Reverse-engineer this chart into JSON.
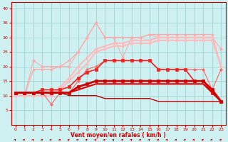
{
  "x": [
    0,
    1,
    2,
    3,
    4,
    5,
    6,
    7,
    8,
    9,
    10,
    11,
    12,
    13,
    14,
    15,
    16,
    17,
    18,
    19,
    20,
    21,
    22,
    23
  ],
  "series": [
    {
      "color": "#ffaaaa",
      "linewidth": 0.8,
      "marker": "D",
      "markersize": 2.0,
      "y": [
        10,
        10,
        22,
        20,
        20,
        20,
        20,
        25,
        30,
        35,
        30,
        30,
        23,
        30,
        30,
        31,
        30,
        30,
        30,
        30,
        30,
        30,
        30,
        26
      ]
    },
    {
      "color": "#ffaaaa",
      "linewidth": 1.0,
      "marker": "o",
      "markersize": 2.0,
      "y": [
        10,
        10,
        19,
        19,
        19,
        20,
        22,
        25,
        30,
        35,
        30,
        30,
        30,
        30,
        30,
        31,
        31,
        31,
        31,
        31,
        31,
        31,
        31,
        20
      ]
    },
    {
      "color": "#ffbbbb",
      "linewidth": 1.5,
      "marker": "D",
      "markersize": 2.0,
      "y": [
        10,
        10,
        10,
        10,
        10,
        13,
        16,
        20,
        23,
        26,
        27,
        28,
        28,
        29,
        29,
        29,
        30,
        30,
        30,
        30,
        30,
        30,
        30,
        20
      ]
    },
    {
      "color": "#ffbbbb",
      "linewidth": 1.5,
      "marker": "D",
      "markersize": 2.0,
      "y": [
        10,
        10,
        10,
        10,
        10,
        12,
        15,
        18,
        21,
        25,
        26,
        27,
        27,
        28,
        28,
        28,
        29,
        29,
        29,
        29,
        29,
        29,
        29,
        20
      ]
    },
    {
      "color": "#ff6666",
      "linewidth": 0.8,
      "marker": "D",
      "markersize": 2.0,
      "y": [
        11,
        11,
        11,
        11,
        7,
        11,
        11,
        15,
        19,
        20,
        22,
        22,
        22,
        22,
        22,
        22,
        19,
        19,
        19,
        19,
        19,
        19,
        12,
        19
      ]
    },
    {
      "color": "#ee2222",
      "linewidth": 1.2,
      "marker": "s",
      "markersize": 2.5,
      "y": [
        11,
        11,
        11,
        12,
        12,
        12,
        13,
        16,
        18,
        19,
        22,
        22,
        22,
        22,
        22,
        22,
        19,
        19,
        19,
        19,
        15,
        15,
        11,
        8
      ]
    },
    {
      "color": "#cc0000",
      "linewidth": 2.0,
      "marker": "s",
      "markersize": 2.5,
      "y": [
        11,
        11,
        11,
        11,
        11,
        11,
        11,
        13,
        14,
        15,
        15,
        15,
        15,
        15,
        15,
        15,
        15,
        15,
        15,
        15,
        15,
        15,
        12,
        8
      ]
    },
    {
      "color": "#dd0000",
      "linewidth": 1.5,
      "marker": null,
      "markersize": 0,
      "y": [
        11,
        11,
        11,
        11,
        11,
        11,
        11,
        12,
        13,
        14,
        14,
        14,
        14,
        14,
        14,
        14,
        14,
        14,
        14,
        14,
        14,
        14,
        11,
        8
      ]
    },
    {
      "color": "#bb0000",
      "linewidth": 1.0,
      "marker": null,
      "markersize": 0,
      "y": [
        11,
        11,
        11,
        11,
        11,
        11,
        10,
        10,
        10,
        10,
        9,
        9,
        9,
        9,
        9,
        9,
        8,
        8,
        8,
        8,
        8,
        8,
        8,
        8
      ]
    }
  ],
  "xlim": [
    -0.5,
    23.5
  ],
  "ylim": [
    0,
    42
  ],
  "yticks": [
    5,
    10,
    15,
    20,
    25,
    30,
    35,
    40
  ],
  "xticks": [
    0,
    1,
    2,
    3,
    4,
    5,
    6,
    7,
    8,
    9,
    10,
    11,
    12,
    13,
    14,
    15,
    16,
    17,
    18,
    19,
    20,
    21,
    22,
    23
  ],
  "xlabel": "Vent moyen/en rafales ( km/h )",
  "background_color": "#cff0f0",
  "grid_color": "#99cccc",
  "tick_color": "#cc0000",
  "label_color": "#cc0000",
  "arrow_color": "#cc0000"
}
